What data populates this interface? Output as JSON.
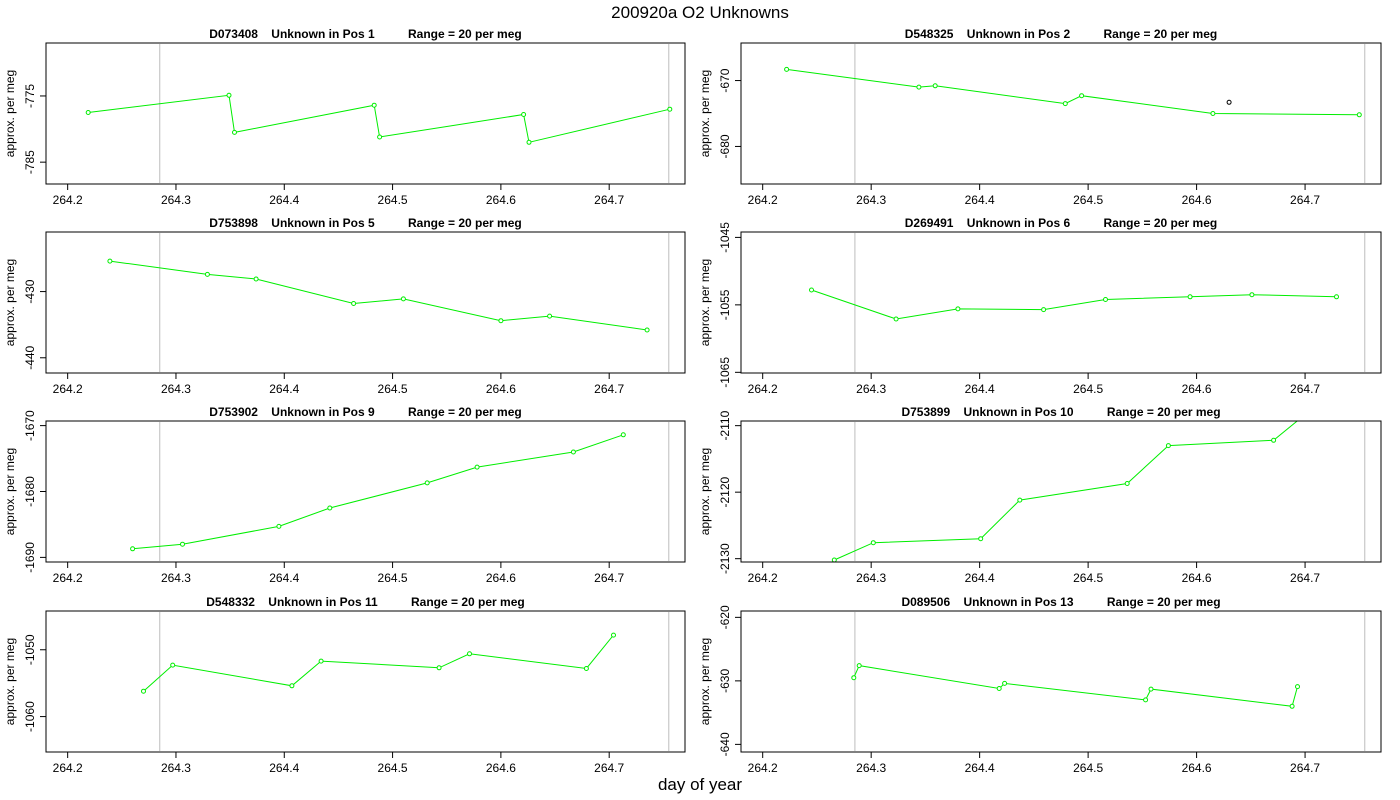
{
  "figure": {
    "title": "200920a  O2 Unknowns",
    "xlabel": "day of year"
  },
  "colors": {
    "series": "#00ee00",
    "outlier": "#000000",
    "vline": "#c8c8c8",
    "axis": "#000000"
  },
  "chart_data": [
    {
      "type": "line",
      "title": "D073408    Unknown in Pos 1          Range = 20 per meg",
      "ylabel": "approx. per meg",
      "xlim": [
        264.18,
        264.77
      ],
      "ylim": [
        -788.3,
        -767.0
      ],
      "xticks": [
        264.2,
        264.3,
        264.4,
        264.5,
        264.6,
        264.7
      ],
      "yticks": [
        -775,
        -785
      ],
      "vlines": [
        264.285,
        264.755
      ],
      "series": [
        {
          "x": [
            264.219,
            264.349,
            264.354,
            264.483,
            264.488,
            264.621,
            264.626,
            264.756
          ],
          "y": [
            -777.5,
            -774.9,
            -780.5,
            -776.4,
            -781.2,
            -777.8,
            -782.0,
            -777.0
          ]
        }
      ],
      "outliers": []
    },
    {
      "type": "line",
      "title": "D548325    Unknown in Pos 2          Range = 20 per meg",
      "ylabel": "approx. per meg",
      "xlim": [
        264.18,
        264.77
      ],
      "ylim": [
        -685.7,
        -664.3
      ],
      "xticks": [
        264.2,
        264.3,
        264.4,
        264.5,
        264.6,
        264.7
      ],
      "yticks": [
        -670,
        -680
      ],
      "vlines": [
        264.285,
        264.755
      ],
      "series": [
        {
          "x": [
            264.222,
            264.344,
            264.359,
            264.479,
            264.494,
            264.615,
            264.75
          ],
          "y": [
            -668.3,
            -671.0,
            -670.8,
            -673.5,
            -672.3,
            -675.0,
            -675.2
          ]
        }
      ],
      "outliers": [
        {
          "x": 264.63,
          "y": -673.3
        }
      ]
    },
    {
      "type": "line",
      "title": "D753898    Unknown in Pos 5          Range = 20 per meg",
      "ylabel": "approx. per meg",
      "xlim": [
        264.18,
        264.77
      ],
      "ylim": [
        -442.3,
        -421.0
      ],
      "xticks": [
        264.2,
        264.3,
        264.4,
        264.5,
        264.6,
        264.7
      ],
      "yticks": [
        -430,
        -440
      ],
      "vlines": [
        264.285,
        264.755
      ],
      "series": [
        {
          "x": [
            264.239,
            264.329,
            264.374,
            264.464,
            264.51,
            264.6,
            264.645,
            264.735
          ],
          "y": [
            -425.4,
            -427.4,
            -428.1,
            -431.8,
            -431.1,
            -434.4,
            -433.7,
            -435.8
          ]
        }
      ],
      "outliers": []
    },
    {
      "type": "line",
      "title": "D269491    Unknown in Pos 6          Range = 20 per meg",
      "ylabel": "approx. per meg",
      "xlim": [
        264.18,
        264.77
      ],
      "ylim": [
        -1065.1,
        -1044.2
      ],
      "xticks": [
        264.2,
        264.3,
        264.4,
        264.5,
        264.6,
        264.7
      ],
      "yticks": [
        -1045,
        -1055,
        -1065
      ],
      "vlines": [
        264.285,
        264.755
      ],
      "series": [
        {
          "x": [
            264.245,
            264.323,
            264.38,
            264.459,
            264.516,
            264.594,
            264.651,
            264.729
          ],
          "y": [
            -1052.8,
            -1057.1,
            -1055.6,
            -1055.7,
            -1054.2,
            -1053.8,
            -1053.5,
            -1053.8
          ]
        }
      ],
      "outliers": []
    },
    {
      "type": "line",
      "title": "D753902    Unknown in Pos 9          Range = 20 per meg",
      "ylabel": "approx. per meg",
      "xlim": [
        264.18,
        264.77
      ],
      "ylim": [
        -1690.7,
        -1669.3
      ],
      "xticks": [
        264.2,
        264.3,
        264.4,
        264.5,
        264.6,
        264.7
      ],
      "yticks": [
        -1670,
        -1680,
        -1690
      ],
      "vlines": [
        264.285,
        264.755
      ],
      "series": [
        {
          "x": [
            264.26,
            264.306,
            264.395,
            264.442,
            264.532,
            264.578,
            264.667,
            264.713
          ],
          "y": [
            -1688.7,
            -1688.0,
            -1685.3,
            -1682.5,
            -1678.7,
            -1676.3,
            -1674.0,
            -1671.4
          ]
        }
      ],
      "outliers": []
    },
    {
      "type": "line",
      "title": "D753899    Unknown in Pos 10          Range = 20 per meg",
      "ylabel": "approx. per meg",
      "xlim": [
        264.18,
        264.77
      ],
      "ylim": [
        -2130.5,
        -2109.3
      ],
      "xticks": [
        264.2,
        264.3,
        264.4,
        264.5,
        264.6,
        264.7
      ],
      "yticks": [
        -2110,
        -2120,
        -2130
      ],
      "vlines": [
        264.285,
        264.755
      ],
      "series": [
        {
          "x": [
            264.266,
            264.302,
            264.401,
            264.437,
            264.536,
            264.574,
            264.671,
            264.71
          ],
          "y": [
            -2130.2,
            -2127.6,
            -2127.0,
            -2121.2,
            -2118.7,
            -2113.0,
            -2112.2,
            -2107.0
          ]
        }
      ],
      "outliers": []
    },
    {
      "type": "line",
      "title": "D548332    Unknown in Pos 11          Range = 20 per meg",
      "ylabel": "approx. per meg",
      "xlim": [
        264.18,
        264.77
      ],
      "ylim": [
        -1065.3,
        -1044.2
      ],
      "xticks": [
        264.2,
        264.3,
        264.4,
        264.5,
        264.6,
        264.7
      ],
      "yticks": [
        -1050,
        -1060
      ],
      "vlines": [
        264.285,
        264.755
      ],
      "series": [
        {
          "x": [
            264.27,
            264.297,
            264.407,
            264.434,
            264.543,
            264.571,
            264.679,
            264.704
          ],
          "y": [
            -1056.2,
            -1052.3,
            -1055.4,
            -1051.7,
            -1052.7,
            -1050.6,
            -1052.8,
            -1047.8
          ]
        }
      ],
      "outliers": []
    },
    {
      "type": "line",
      "title": "D089506    Unknown in Pos 13          Range = 20 per meg",
      "ylabel": "approx. per meg",
      "xlim": [
        264.18,
        264.77
      ],
      "ylim": [
        -641.2,
        -619.0
      ],
      "xticks": [
        264.2,
        264.3,
        264.4,
        264.5,
        264.6,
        264.7
      ],
      "yticks": [
        -620,
        -630,
        -640
      ],
      "vlines": [
        264.285,
        264.755
      ],
      "series": [
        {
          "x": [
            264.284,
            264.289,
            264.418,
            264.423,
            264.553,
            264.558,
            264.688,
            264.693
          ],
          "y": [
            -629.5,
            -627.6,
            -631.2,
            -630.4,
            -633.0,
            -631.3,
            -634.0,
            -630.9
          ]
        }
      ],
      "outliers": []
    }
  ]
}
